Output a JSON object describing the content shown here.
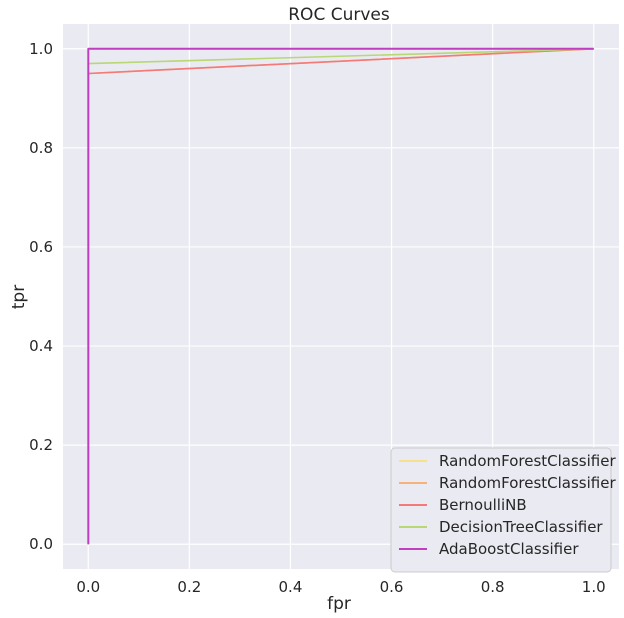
{
  "chart_data": {
    "type": "line",
    "title": "ROC Curves",
    "xlabel": "fpr",
    "ylabel": "tpr",
    "xlim": [
      -0.05,
      1.05
    ],
    "ylim": [
      -0.05,
      1.05
    ],
    "xticks": [
      "0.0",
      "0.2",
      "0.4",
      "0.6",
      "0.8",
      "1.0"
    ],
    "yticks": [
      "0.0",
      "0.2",
      "0.4",
      "0.6",
      "0.8",
      "1.0"
    ],
    "grid": true,
    "legend_position": "bottom-right",
    "background": "#eaeaf2",
    "series": [
      {
        "name": "RandomForestClassifier",
        "color": "#f6e08d",
        "x": [
          0.0,
          0.0,
          1.0
        ],
        "y": [
          0.0,
          1.0,
          1.0
        ]
      },
      {
        "name": "RandomForestClassifier",
        "color": "#f7b27a",
        "x": [
          0.0,
          0.0,
          1.0
        ],
        "y": [
          0.0,
          0.95,
          1.0
        ]
      },
      {
        "name": "BernoulliNB",
        "color": "#f47a7a",
        "x": [
          0.0,
          0.0,
          1.0
        ],
        "y": [
          0.0,
          0.95,
          1.0
        ]
      },
      {
        "name": "DecisionTreeClassifier",
        "color": "#b9d774",
        "x": [
          0.0,
          0.0,
          1.0
        ],
        "y": [
          0.0,
          0.97,
          1.0
        ]
      },
      {
        "name": "AdaBoostClassifier",
        "color": "#c03fc0",
        "x": [
          0.0,
          0.0,
          1.0
        ],
        "y": [
          0.0,
          1.0,
          1.0
        ]
      }
    ]
  }
}
